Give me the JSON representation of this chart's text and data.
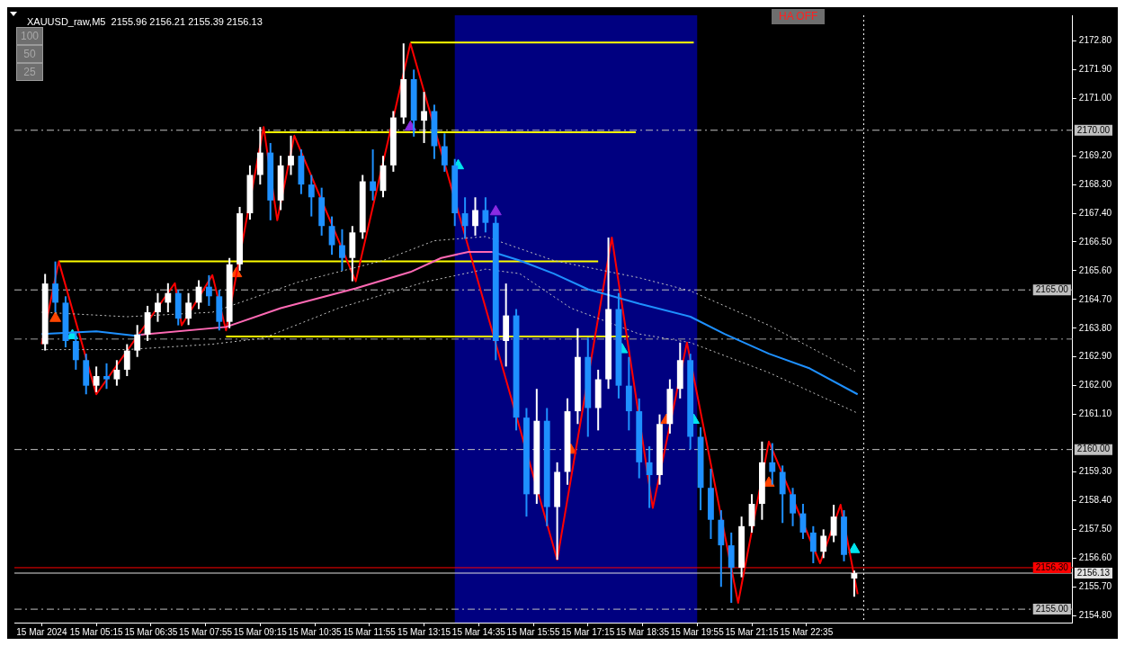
{
  "chart_data": {
    "type": "candlestick",
    "title": "XAUUSD_raw,M5  2155.96 2156.21 2155.39 2156.13",
    "annotations": [
      "100",
      "50",
      "25",
      "HA OFF"
    ],
    "x": [
      "2024-03-15T04:00",
      "2024-03-15T04:15",
      "2024-03-15T04:30",
      "2024-03-15T04:45",
      "2024-03-15T05:00",
      "2024-03-15T05:15",
      "2024-03-15T05:30",
      "2024-03-15T05:45",
      "2024-03-15T06:00",
      "2024-03-15T06:15",
      "2024-03-15T06:30",
      "2024-03-15T06:45",
      "2024-03-15T07:00",
      "2024-03-15T07:15",
      "2024-03-15T07:30",
      "2024-03-15T07:45",
      "2024-03-15T08:00",
      "2024-03-15T08:15",
      "2024-03-15T08:30",
      "2024-03-15T08:45",
      "2024-03-15T09:00",
      "2024-03-15T09:15",
      "2024-03-15T09:30",
      "2024-03-15T09:45",
      "2024-03-15T10:00",
      "2024-03-15T10:15",
      "2024-03-15T10:30",
      "2024-03-15T10:45",
      "2024-03-15T11:00",
      "2024-03-15T11:15",
      "2024-03-15T11:30",
      "2024-03-15T11:45",
      "2024-03-15T12:00",
      "2024-03-15T12:15",
      "2024-03-15T12:30",
      "2024-03-15T12:45",
      "2024-03-15T13:00",
      "2024-03-15T13:15",
      "2024-03-15T13:30",
      "2024-03-15T13:45",
      "2024-03-15T14:00",
      "2024-03-15T14:15",
      "2024-03-15T14:30",
      "2024-03-15T14:45",
      "2024-03-15T15:00",
      "2024-03-15T15:15",
      "2024-03-15T15:30",
      "2024-03-15T15:45",
      "2024-03-15T16:00",
      "2024-03-15T16:15",
      "2024-03-15T16:30",
      "2024-03-15T16:45",
      "2024-03-15T17:00",
      "2024-03-15T17:15",
      "2024-03-15T17:30",
      "2024-03-15T17:45",
      "2024-03-15T18:00",
      "2024-03-15T18:15",
      "2024-03-15T18:30",
      "2024-03-15T18:45",
      "2024-03-15T19:00",
      "2024-03-15T19:15",
      "2024-03-15T19:30",
      "2024-03-15T19:45",
      "2024-03-15T20:00",
      "2024-03-15T20:15",
      "2024-03-15T20:30",
      "2024-03-15T20:45",
      "2024-03-15T21:00",
      "2024-03-15T21:15",
      "2024-03-15T21:30",
      "2024-03-15T21:45",
      "2024-03-15T22:00",
      "2024-03-15T22:15",
      "2024-03-15T22:30",
      "2024-03-15T22:45",
      "2024-03-15T23:00",
      "2024-03-15T23:15",
      "2024-03-15T23:30",
      "2024-03-15T23:45"
    ],
    "ohlc": [
      [
        2163.3,
        2165.5,
        2163.1,
        2165.2
      ],
      [
        2165.2,
        2165.89,
        2164.3,
        2164.6
      ],
      [
        2164.6,
        2164.8,
        2163.2,
        2163.4
      ],
      [
        2163.4,
        2163.7,
        2162.5,
        2162.8
      ],
      [
        2162.8,
        2163.0,
        2161.73,
        2162.0
      ],
      [
        2162.0,
        2162.6,
        2161.8,
        2162.3
      ],
      [
        2162.3,
        2162.7,
        2161.9,
        2162.2
      ],
      [
        2162.2,
        2162.8,
        2162.0,
        2162.5
      ],
      [
        2162.5,
        2163.3,
        2162.3,
        2163.1
      ],
      [
        2163.1,
        2163.9,
        2162.9,
        2163.6
      ],
      [
        2163.6,
        2164.5,
        2163.4,
        2164.3
      ],
      [
        2164.3,
        2164.9,
        2164.0,
        2164.6
      ],
      [
        2164.6,
        2165.21,
        2164.3,
        2164.9
      ],
      [
        2164.9,
        2165.0,
        2163.89,
        2164.1
      ],
      [
        2164.1,
        2164.9,
        2163.9,
        2164.6
      ],
      [
        2164.6,
        2165.3,
        2164.4,
        2165.1
      ],
      [
        2165.1,
        2165.46,
        2164.5,
        2164.8
      ],
      [
        2164.8,
        2165.0,
        2163.73,
        2164.0
      ],
      [
        2164.0,
        2166.0,
        2163.8,
        2165.8
      ],
      [
        2165.8,
        2167.6,
        2165.6,
        2167.4
      ],
      [
        2167.4,
        2168.9,
        2167.2,
        2168.6
      ],
      [
        2168.6,
        2170.1,
        2168.3,
        2169.3
      ],
      [
        2169.3,
        2169.6,
        2167.18,
        2167.8
      ],
      [
        2167.8,
        2169.2,
        2167.5,
        2168.9
      ],
      [
        2168.9,
        2169.83,
        2168.6,
        2169.2
      ],
      [
        2169.2,
        2169.4,
        2168.0,
        2168.3
      ],
      [
        2168.3,
        2168.6,
        2167.3,
        2167.9
      ],
      [
        2167.9,
        2168.2,
        2166.7,
        2167.0
      ],
      [
        2167.0,
        2167.3,
        2166.1,
        2166.4
      ],
      [
        2166.4,
        2166.9,
        2165.6,
        2166.0
      ],
      [
        2166.0,
        2167.0,
        2165.27,
        2166.8
      ],
      [
        2166.8,
        2168.6,
        2166.6,
        2168.4
      ],
      [
        2168.4,
        2169.4,
        2167.8,
        2168.1
      ],
      [
        2168.1,
        2169.2,
        2167.9,
        2168.9
      ],
      [
        2168.9,
        2170.6,
        2168.7,
        2170.4
      ],
      [
        2170.4,
        2172.72,
        2170.2,
        2171.6
      ],
      [
        2171.6,
        2171.9,
        2169.8,
        2170.3
      ],
      [
        2170.3,
        2171.2,
        2169.6,
        2170.6
      ],
      [
        2170.6,
        2170.8,
        2169.1,
        2169.5
      ],
      [
        2169.5,
        2169.9,
        2168.7,
        2168.9
      ],
      [
        2168.9,
        2169.1,
        2167.0,
        2167.4
      ],
      [
        2167.4,
        2167.9,
        2166.6,
        2167.0
      ],
      [
        2167.0,
        2167.9,
        2166.7,
        2167.5
      ],
      [
        2167.5,
        2167.9,
        2166.8,
        2167.1
      ],
      [
        2167.1,
        2167.3,
        2162.8,
        2163.4
      ],
      [
        2163.4,
        2165.2,
        2162.6,
        2164.2
      ],
      [
        2164.2,
        2164.4,
        2160.6,
        2161.0
      ],
      [
        2161.0,
        2161.3,
        2157.9,
        2158.6
      ],
      [
        2158.6,
        2161.9,
        2158.3,
        2160.9
      ],
      [
        2160.9,
        2161.3,
        2157.6,
        2158.2
      ],
      [
        2158.2,
        2159.6,
        2156.55,
        2159.3
      ],
      [
        2159.3,
        2161.6,
        2158.9,
        2161.2
      ],
      [
        2161.2,
        2163.8,
        2160.8,
        2162.9
      ],
      [
        2162.9,
        2163.5,
        2160.4,
        2161.3
      ],
      [
        2161.3,
        2162.5,
        2160.6,
        2162.2
      ],
      [
        2162.2,
        2166.64,
        2161.9,
        2164.4
      ],
      [
        2164.4,
        2164.9,
        2161.6,
        2162.0
      ],
      [
        2162.0,
        2162.9,
        2160.6,
        2161.2
      ],
      [
        2161.2,
        2161.6,
        2159.1,
        2159.6
      ],
      [
        2159.6,
        2160.1,
        2158.17,
        2159.2
      ],
      [
        2159.2,
        2161.1,
        2158.9,
        2160.8
      ],
      [
        2160.8,
        2162.2,
        2160.5,
        2161.9
      ],
      [
        2161.9,
        2163.35,
        2161.6,
        2162.8
      ],
      [
        2162.8,
        2163.0,
        2160.0,
        2160.4
      ],
      [
        2160.4,
        2160.7,
        2158.1,
        2158.8
      ],
      [
        2158.8,
        2159.4,
        2157.2,
        2157.8
      ],
      [
        2157.8,
        2158.1,
        2155.7,
        2157.0
      ],
      [
        2157.0,
        2157.4,
        2155.2,
        2156.3
      ],
      [
        2156.3,
        2157.9,
        2156.0,
        2157.6
      ],
      [
        2157.6,
        2158.6,
        2157.4,
        2158.3
      ],
      [
        2158.3,
        2160.25,
        2157.8,
        2159.6
      ],
      [
        2159.6,
        2160.2,
        2158.9,
        2159.3
      ],
      [
        2159.3,
        2159.5,
        2157.7,
        2158.6
      ],
      [
        2158.6,
        2158.8,
        2157.6,
        2158.0
      ],
      [
        2158.0,
        2158.3,
        2157.2,
        2157.4
      ],
      [
        2157.4,
        2157.6,
        2156.44,
        2156.8
      ],
      [
        2156.8,
        2157.5,
        2156.6,
        2157.3
      ],
      [
        2157.3,
        2158.27,
        2157.1,
        2157.9
      ],
      [
        2157.9,
        2158.1,
        2156.5,
        2156.7
      ],
      [
        2155.96,
        2156.21,
        2155.39,
        2156.13
      ]
    ],
    "colors": [
      "#ffffff",
      "#1e90ff",
      "#1e90ff",
      "#1e90ff",
      "#1e90ff",
      "#ffffff",
      "#1e90ff",
      "#ffffff",
      "#ffffff",
      "#ffffff",
      "#ffffff",
      "#ffffff",
      "#ffffff",
      "#1e90ff",
      "#ffffff",
      "#ffffff",
      "#1e90ff",
      "#1e90ff",
      "#ffffff",
      "#ffffff",
      "#ffffff",
      "#ffffff",
      "#1e90ff",
      "#ffffff",
      "#ffffff",
      "#1e90ff",
      "#1e90ff",
      "#1e90ff",
      "#1e90ff",
      "#1e90ff",
      "#ffffff",
      "#ffffff",
      "#1e90ff",
      "#ffffff",
      "#ffffff",
      "#ffffff",
      "#1e90ff",
      "#ffffff",
      "#1e90ff",
      "#1e90ff",
      "#1e90ff",
      "#1e90ff",
      "#ffffff",
      "#1e90ff",
      "#1e90ff",
      "#ffffff",
      "#1e90ff",
      "#1e90ff",
      "#ffffff",
      "#1e90ff",
      "#ffffff",
      "#ffffff",
      "#ffffff",
      "#1e90ff",
      "#ffffff",
      "#ffffff",
      "#1e90ff",
      "#1e90ff",
      "#1e90ff",
      "#1e90ff",
      "#ffffff",
      "#ffffff",
      "#ffffff",
      "#1e90ff",
      "#1e90ff",
      "#1e90ff",
      "#1e90ff",
      "#1e90ff",
      "#ffffff",
      "#ffffff",
      "#ffffff",
      "#1e90ff",
      "#1e90ff",
      "#1e90ff",
      "#1e90ff",
      "#1e90ff",
      "#ffffff",
      "#ffffff",
      "#1e90ff",
      "#ffffff"
    ],
    "series": [
      {
        "type": "line",
        "color": "#1e90ff",
        "x": [
          "2024-03-15T03:55",
          "2024-03-15T05:15",
          "2024-03-15T06:10",
          "2024-03-15T06:20"
        ],
        "values": [
          2163.62,
          2163.7,
          2163.57,
          2163.6
        ]
      },
      {
        "type": "line",
        "color": "#ff69b4",
        "x": [
          "2024-03-15T06:20",
          "2024-03-15T08:25",
          "2024-03-15T09:45",
          "2024-03-15T11:35",
          "2024-03-15T12:55",
          "2024-03-15T13:40",
          "2024-03-15T14:20",
          "2024-03-15T14:55"
        ],
        "values": [
          2163.6,
          2163.84,
          2164.43,
          2165.05,
          2165.56,
          2166.0,
          2166.19,
          2166.19
        ]
      },
      {
        "type": "line",
        "color": "#1e90ff",
        "x": [
          "2024-03-15T14:55",
          "2024-03-15T15:35",
          "2024-03-15T16:25",
          "2024-03-15T17:15",
          "2024-03-15T18:30",
          "2024-03-15T19:45",
          "2024-03-15T20:35",
          "2024-03-15T21:40",
          "2024-03-15T22:40",
          "2024-03-15T23:50"
        ],
        "values": [
          2166.19,
          2165.92,
          2165.51,
          2165.02,
          2164.57,
          2164.16,
          2163.62,
          2163.0,
          2162.54,
          2161.73
        ]
      },
      {
        "type": "line",
        "color": "#c0c0c0",
        "line_style": "dotted",
        "x": [
          "2024-03-15T03:55",
          "2024-03-15T06:00",
          "2024-03-15T08:05",
          "2024-03-15T10:10",
          "2024-03-15T12:15",
          "2024-03-15T13:30",
          "2024-03-15T14:45",
          "2024-03-15T16:25",
          "2024-03-15T18:30",
          "2024-03-15T19:45",
          "2024-03-15T21:40",
          "2024-03-15T23:50"
        ],
        "values": [
          2164.3,
          2164.16,
          2164.3,
          2165.24,
          2165.92,
          2166.54,
          2166.67,
          2165.92,
          2165.38,
          2164.97,
          2163.89,
          2162.41
        ]
      },
      {
        "type": "line",
        "color": "#c0c0c0",
        "line_style": "dotted",
        "x": [
          "2024-03-15T03:55",
          "2024-03-15T06:00",
          "2024-03-15T08:05",
          "2024-03-15T09:20",
          "2024-03-15T11:10",
          "2024-03-15T13:15",
          "2024-03-15T14:45",
          "2024-03-15T15:35",
          "2024-03-15T16:50",
          "2024-03-15T18:30",
          "2024-03-15T19:45",
          "2024-03-15T21:40",
          "2024-03-15T23:50"
        ],
        "values": [
          2163.13,
          2163.13,
          2163.3,
          2163.49,
          2164.43,
          2165.24,
          2165.65,
          2165.51,
          2164.43,
          2163.62,
          2163.35,
          2162.41,
          2161.14
        ]
      },
      {
        "type": "line",
        "color": "#ff0000",
        "x": [
          "2024-03-15T03:55",
          "2024-03-15T04:20",
          "2024-03-15T05:15",
          "2024-03-15T07:10",
          "2024-03-15T07:20",
          "2024-03-15T08:05",
          "2024-03-15T08:25",
          "2024-03-15T09:20",
          "2024-03-15T09:40",
          "2024-03-15T10:05",
          "2024-03-15T11:35",
          "2024-03-15T12:55",
          "2024-03-15T16:30",
          "2024-03-15T17:50",
          "2024-03-15T18:50",
          "2024-03-15T19:40",
          "2024-03-15T20:55",
          "2024-03-15T21:40",
          "2024-03-15T22:55",
          "2024-03-15T23:25",
          "2024-03-15T23:50"
        ],
        "values": [
          2163.3,
          2165.89,
          2161.73,
          2165.21,
          2163.89,
          2165.46,
          2163.73,
          2170.1,
          2167.18,
          2169.83,
          2165.27,
          2172.72,
          2156.55,
          2166.64,
          2158.17,
          2163.35,
          2155.2,
          2160.25,
          2156.44,
          2158.27,
          2155.47
        ]
      },
      {
        "type": "line",
        "color": "#ffff00",
        "x": [
          "2024-03-15T12:55",
          "2024-03-15T19:50"
        ],
        "values": [
          2172.75,
          2172.75
        ]
      },
      {
        "type": "line",
        "color": "#ffff00",
        "x": [
          "2024-03-15T09:20",
          "2024-03-15T18:25"
        ],
        "values": [
          2169.94,
          2169.94
        ]
      },
      {
        "type": "line",
        "color": "#ffff00",
        "x": [
          "2024-03-15T04:20",
          "2024-03-15T17:30"
        ],
        "values": [
          2165.89,
          2165.89
        ]
      },
      {
        "type": "line",
        "color": "#ffff00",
        "x": [
          "2024-03-15T08:25",
          "2024-03-15T18:15"
        ],
        "values": [
          2163.54,
          2163.54
        ]
      },
      {
        "type": "scatter",
        "marker": "triangle",
        "color": "#ff4500",
        "x": [
          "2024-03-15T04:15",
          "2024-03-15T08:40",
          "2024-03-15T16:50",
          "2024-03-15T19:10",
          "2024-03-15T21:40"
        ],
        "values": [
          2164.11,
          2165.51,
          2159.98,
          2160.92,
          2158.95
        ]
      },
      {
        "type": "scatter",
        "marker": "triangle",
        "color": "#00e5ee",
        "x": [
          "2024-03-15T04:40",
          "2024-03-15T14:05",
          "2024-03-15T18:05",
          "2024-03-15T19:50",
          "2024-03-15T23:45"
        ],
        "values": [
          2163.57,
          2168.89,
          2163.13,
          2160.92,
          2156.87
        ]
      },
      {
        "type": "scatter",
        "marker": "triangle",
        "color": "#8a2be2",
        "x": [
          "2024-03-15T12:55",
          "2024-03-15T15:00"
        ],
        "values": [
          2170.1,
          2167.45
        ]
      }
    ],
    "bands": [
      {
        "axis": "x",
        "from": "2024-03-15T14:00",
        "to": "2024-03-15T19:55",
        "color": "#000080"
      }
    ],
    "ref_lines": [
      {
        "axis": "y",
        "value": 2170.0,
        "label": "2170.00",
        "color": "#c0c0c0",
        "line_style": "dashed"
      },
      {
        "axis": "y",
        "value": 2165.0,
        "label": "2165.00",
        "color": "#c0c0c0",
        "line_style": "dashed"
      },
      {
        "axis": "y",
        "value": 2160.0,
        "label": "2160.00",
        "color": "#c0c0c0",
        "line_style": "dashed"
      },
      {
        "axis": "y",
        "value": 2155.0,
        "label": "2155.00",
        "color": "#c0c0c0",
        "line_style": "dashed"
      },
      {
        "axis": "y",
        "value": 2163.46,
        "color": "#a0a0a0",
        "line_style": "dashed"
      },
      {
        "axis": "y",
        "value": 2156.3,
        "label": "2156.30",
        "color": "#ff0000",
        "line_style": "solid"
      },
      {
        "axis": "y",
        "value": 2156.13,
        "label": "2156.13",
        "color": "#e0e0e0",
        "line_style": "solid"
      },
      {
        "axis": "x",
        "value": "2024-03-15T23:59",
        "color": "#ffffff",
        "line_style": "dotted"
      }
    ],
    "xlim": [
      "2024-03-15T03:15",
      "2024-03-16T05:05"
    ],
    "xticks": [
      {
        "value": "2024-03-15T03:55",
        "label": "15 Mar 2024"
      },
      {
        "value": "2024-03-15T05:15",
        "label": "15 Mar 05:15"
      },
      {
        "value": "2024-03-15T06:35",
        "label": "15 Mar 06:35"
      },
      {
        "value": "2024-03-15T07:55",
        "label": "15 Mar 07:55"
      },
      {
        "value": "2024-03-15T09:15",
        "label": "15 Mar 09:15"
      },
      {
        "value": "2024-03-15T10:35",
        "label": "15 Mar 10:35"
      },
      {
        "value": "2024-03-15T11:55",
        "label": "15 Mar 11:55"
      },
      {
        "value": "2024-03-15T13:15",
        "label": "15 Mar 13:15"
      },
      {
        "value": "2024-03-15T14:35",
        "label": "15 Mar 14:35"
      },
      {
        "value": "2024-03-15T15:55",
        "label": "15 Mar 15:55"
      },
      {
        "value": "2024-03-15T17:15",
        "label": "15 Mar 17:15"
      },
      {
        "value": "2024-03-15T18:35",
        "label": "15 Mar 18:35"
      },
      {
        "value": "2024-03-15T19:55",
        "label": "15 Mar 19:55"
      },
      {
        "value": "2024-03-15T21:15",
        "label": "15 Mar 21:15"
      },
      {
        "value": "2024-03-15T22:35",
        "label": "15 Mar 22:35"
      }
    ],
    "ylim": [
      2154.58,
      2173.6
    ],
    "yticks": [
      {
        "value": 2172.8,
        "label": "2172.80"
      },
      {
        "value": 2171.9,
        "label": "2171.90"
      },
      {
        "value": 2171.0,
        "label": "2171.00"
      },
      {
        "value": 2169.2,
        "label": "2169.20"
      },
      {
        "value": 2168.3,
        "label": "2168.30"
      },
      {
        "value": 2167.4,
        "label": "2167.40"
      },
      {
        "value": 2166.5,
        "label": "2166.50"
      },
      {
        "value": 2165.6,
        "label": "2165.60"
      },
      {
        "value": 2164.7,
        "label": "2164.70"
      },
      {
        "value": 2163.8,
        "label": "2163.80"
      },
      {
        "value": 2162.9,
        "label": "2162.90"
      },
      {
        "value": 2162.0,
        "label": "2162.00"
      },
      {
        "value": 2161.1,
        "label": "2161.10"
      },
      {
        "value": 2159.3,
        "label": "2159.30"
      },
      {
        "value": 2158.4,
        "label": "2158.40"
      },
      {
        "value": 2157.5,
        "label": "2157.50"
      },
      {
        "value": 2156.6,
        "label": "2156.60"
      },
      {
        "value": 2155.7,
        "label": "2155.70"
      },
      {
        "value": 2154.8,
        "label": "2154.80"
      }
    ]
  }
}
